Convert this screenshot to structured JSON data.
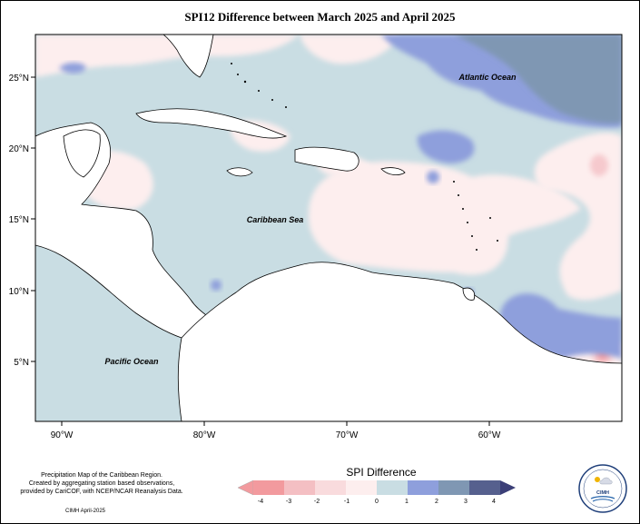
{
  "title": "SPI12 Difference between March 2025 and April 2025",
  "axes": {
    "lat_ticks": [
      "25°N",
      "20°N",
      "15°N",
      "10°N",
      "5°N"
    ],
    "lon_ticks": [
      "90°W",
      "80°W",
      "70°W",
      "60°W"
    ],
    "lon_range": [
      -92,
      -50
    ],
    "lat_range": [
      0.5,
      28
    ]
  },
  "labels": {
    "atlantic": "Atlantic Ocean",
    "caribbean": "Caribbean Sea",
    "pacific": "Pacific Ocean"
  },
  "legend": {
    "title": "SPI Difference",
    "ticks": [
      "-4",
      "-3",
      "-2",
      "-1",
      "0",
      "1",
      "2",
      "3",
      "4"
    ],
    "colors": [
      "#f29a9e",
      "#f4bfc3",
      "#f9dbdd",
      "#fdeeee",
      "#c9dde3",
      "#8e9fdc",
      "#7f97b3",
      "#56608e"
    ]
  },
  "credit": {
    "line1": "Precipitation Map of the Caribbean Region.",
    "line2": "Created by aggregating station based observations,",
    "line3": "provided by CariCOF, with NCEP/NCAR Reanalysis Data.",
    "stamp": "CIMH April-2025"
  },
  "logo": {
    "text": "CIMH"
  }
}
